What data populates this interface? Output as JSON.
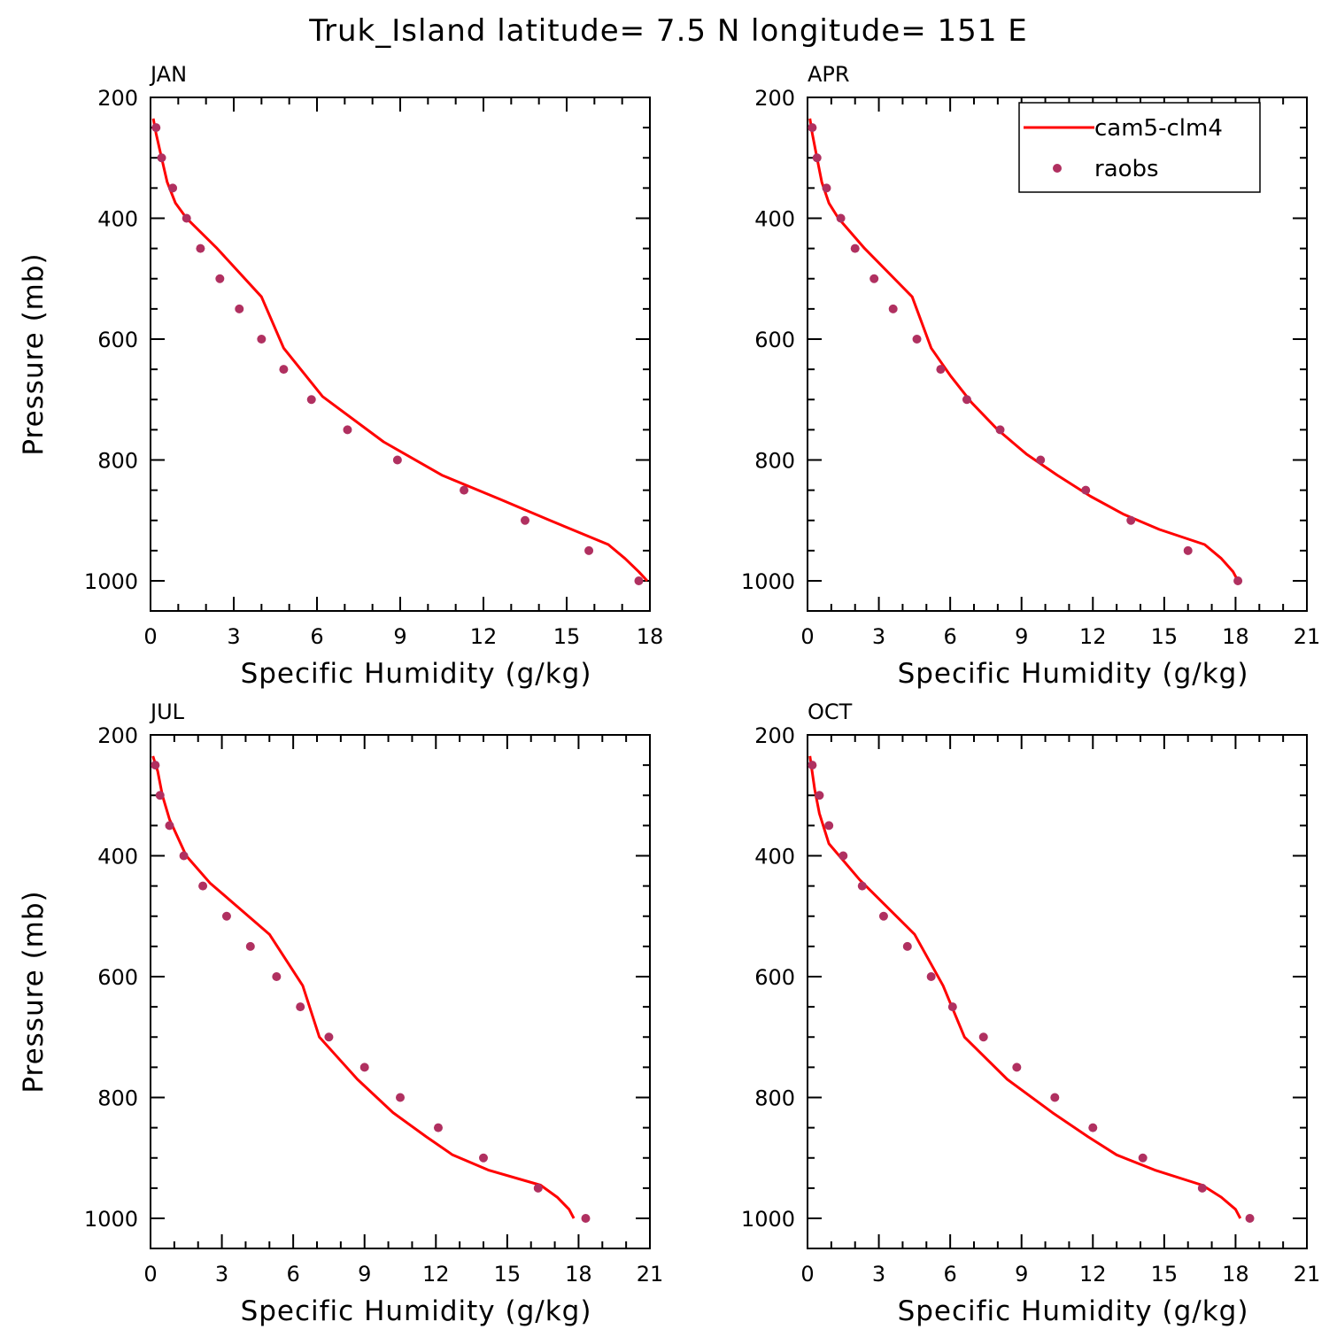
{
  "title": "Truk_Island  latitude= 7.5 N longitude= 151 E",
  "legend": {
    "model_label": "cam5-clm4",
    "obs_label": "raobs",
    "placement": "top-right of APR panel"
  },
  "colors": {
    "model_line": "#ff0000",
    "obs_marker": "#b03060",
    "axes": "#000000"
  },
  "chart_data": [
    {
      "type": "line",
      "title": "JAN",
      "xlabel": "Specific Humidity (g/kg)",
      "ylabel": "Pressure (mb)",
      "xlim": [
        0,
        18
      ],
      "ylim": [
        200,
        1025
      ],
      "y_inverted": true,
      "xticks": [
        0,
        3,
        6,
        9,
        12,
        15,
        18
      ],
      "yticks": [
        200,
        400,
        600,
        800,
        1000
      ],
      "series": [
        {
          "name": "cam5-clm4",
          "style": "line",
          "points": [
            [
              17.9,
              1000
            ],
            [
              17.6,
              985
            ],
            [
              17.1,
              963
            ],
            [
              16.5,
              940
            ],
            [
              14.4,
              900
            ],
            [
              12.6,
              865
            ],
            [
              10.5,
              825
            ],
            [
              8.4,
              770
            ],
            [
              6.2,
              695
            ],
            [
              4.8,
              615
            ],
            [
              4.0,
              530
            ],
            [
              2.4,
              450
            ],
            [
              1.3,
              400
            ],
            [
              0.9,
              375
            ],
            [
              0.6,
              340
            ],
            [
              0.4,
              300
            ],
            [
              0.2,
              260
            ],
            [
              0.1,
              235
            ]
          ]
        },
        {
          "name": "raobs",
          "style": "markers",
          "points": [
            [
              17.6,
              1000
            ],
            [
              15.8,
              950
            ],
            [
              13.5,
              900
            ],
            [
              11.3,
              850
            ],
            [
              8.9,
              800
            ],
            [
              7.1,
              750
            ],
            [
              5.8,
              700
            ],
            [
              4.8,
              650
            ],
            [
              4.0,
              600
            ],
            [
              3.2,
              550
            ],
            [
              2.5,
              500
            ],
            [
              1.8,
              450
            ],
            [
              1.3,
              400
            ],
            [
              0.8,
              350
            ],
            [
              0.4,
              300
            ],
            [
              0.2,
              250
            ]
          ]
        }
      ]
    },
    {
      "type": "line",
      "title": "APR",
      "xlabel": "Specific Humidity (g/kg)",
      "ylabel": "",
      "xlim": [
        0,
        21
      ],
      "ylim": [
        200,
        1025
      ],
      "y_inverted": true,
      "xticks": [
        0,
        3,
        6,
        9,
        12,
        15,
        18,
        21
      ],
      "yticks": [
        200,
        400,
        600,
        800,
        1000
      ],
      "series": [
        {
          "name": "cam5-clm4",
          "style": "line",
          "points": [
            [
              18.1,
              1000
            ],
            [
              17.9,
              985
            ],
            [
              17.4,
              963
            ],
            [
              16.7,
              940
            ],
            [
              14.8,
              915
            ],
            [
              13.3,
              890
            ],
            [
              11.9,
              860
            ],
            [
              10.5,
              825
            ],
            [
              9.2,
              790
            ],
            [
              8.0,
              750
            ],
            [
              6.9,
              705
            ],
            [
              6.0,
              660
            ],
            [
              5.2,
              615
            ],
            [
              4.4,
              530
            ],
            [
              2.4,
              450
            ],
            [
              1.3,
              400
            ],
            [
              0.9,
              375
            ],
            [
              0.6,
              340
            ],
            [
              0.4,
              300
            ],
            [
              0.2,
              260
            ],
            [
              0.1,
              235
            ]
          ]
        },
        {
          "name": "raobs",
          "style": "markers",
          "points": [
            [
              18.1,
              1000
            ],
            [
              16.0,
              950
            ],
            [
              13.6,
              900
            ],
            [
              11.7,
              850
            ],
            [
              9.8,
              800
            ],
            [
              8.1,
              750
            ],
            [
              6.7,
              700
            ],
            [
              5.6,
              650
            ],
            [
              4.6,
              600
            ],
            [
              3.6,
              550
            ],
            [
              2.8,
              500
            ],
            [
              2.0,
              450
            ],
            [
              1.4,
              400
            ],
            [
              0.8,
              350
            ],
            [
              0.4,
              300
            ],
            [
              0.2,
              250
            ]
          ]
        }
      ]
    },
    {
      "type": "line",
      "title": "JUL",
      "xlabel": "Specific Humidity (g/kg)",
      "ylabel": "Pressure (mb)",
      "xlim": [
        0,
        21
      ],
      "ylim": [
        200,
        1025
      ],
      "y_inverted": true,
      "xticks": [
        0,
        3,
        6,
        9,
        12,
        15,
        18,
        21
      ],
      "yticks": [
        200,
        400,
        600,
        800,
        1000
      ],
      "series": [
        {
          "name": "cam5-clm4",
          "style": "line",
          "points": [
            [
              17.8,
              1000
            ],
            [
              17.6,
              985
            ],
            [
              17.1,
              965
            ],
            [
              16.4,
              945
            ],
            [
              14.2,
              920
            ],
            [
              12.7,
              895
            ],
            [
              11.6,
              865
            ],
            [
              10.2,
              825
            ],
            [
              8.7,
              770
            ],
            [
              7.1,
              700
            ],
            [
              6.4,
              615
            ],
            [
              5.0,
              530
            ],
            [
              2.5,
              445
            ],
            [
              1.5,
              400
            ],
            [
              0.8,
              340
            ],
            [
              0.5,
              300
            ],
            [
              0.3,
              260
            ],
            [
              0.1,
              235
            ]
          ]
        },
        {
          "name": "raobs",
          "style": "markers",
          "points": [
            [
              18.3,
              1000
            ],
            [
              16.3,
              950
            ],
            [
              14.0,
              900
            ],
            [
              12.1,
              850
            ],
            [
              10.5,
              800
            ],
            [
              9.0,
              750
            ],
            [
              7.5,
              700
            ],
            [
              6.3,
              650
            ],
            [
              5.3,
              600
            ],
            [
              4.2,
              550
            ],
            [
              3.2,
              500
            ],
            [
              2.2,
              450
            ],
            [
              1.4,
              400
            ],
            [
              0.8,
              350
            ],
            [
              0.4,
              300
            ],
            [
              0.2,
              250
            ]
          ]
        }
      ]
    },
    {
      "type": "line",
      "title": "OCT",
      "xlabel": "Specific Humidity (g/kg)",
      "ylabel": "",
      "xlim": [
        0,
        21
      ],
      "ylim": [
        200,
        1025
      ],
      "y_inverted": true,
      "xticks": [
        0,
        3,
        6,
        9,
        12,
        15,
        18,
        21
      ],
      "yticks": [
        200,
        400,
        600,
        800,
        1000
      ],
      "series": [
        {
          "name": "cam5-clm4",
          "style": "line",
          "points": [
            [
              18.2,
              1000
            ],
            [
              18.0,
              985
            ],
            [
              17.4,
              965
            ],
            [
              16.6,
              945
            ],
            [
              14.6,
              920
            ],
            [
              13.0,
              895
            ],
            [
              11.8,
              865
            ],
            [
              10.3,
              825
            ],
            [
              8.4,
              770
            ],
            [
              6.6,
              700
            ],
            [
              5.7,
              615
            ],
            [
              4.5,
              530
            ],
            [
              2.2,
              440
            ],
            [
              0.9,
              380
            ],
            [
              0.5,
              330
            ],
            [
              0.3,
              290
            ],
            [
              0.1,
              235
            ]
          ]
        },
        {
          "name": "raobs",
          "style": "markers",
          "points": [
            [
              18.6,
              1000
            ],
            [
              16.6,
              950
            ],
            [
              14.1,
              900
            ],
            [
              12.0,
              850
            ],
            [
              10.4,
              800
            ],
            [
              8.8,
              750
            ],
            [
              7.4,
              700
            ],
            [
              6.1,
              650
            ],
            [
              5.2,
              600
            ],
            [
              4.2,
              550
            ],
            [
              3.2,
              500
            ],
            [
              2.3,
              450
            ],
            [
              1.5,
              400
            ],
            [
              0.9,
              350
            ],
            [
              0.5,
              300
            ],
            [
              0.2,
              250
            ]
          ]
        }
      ]
    }
  ]
}
